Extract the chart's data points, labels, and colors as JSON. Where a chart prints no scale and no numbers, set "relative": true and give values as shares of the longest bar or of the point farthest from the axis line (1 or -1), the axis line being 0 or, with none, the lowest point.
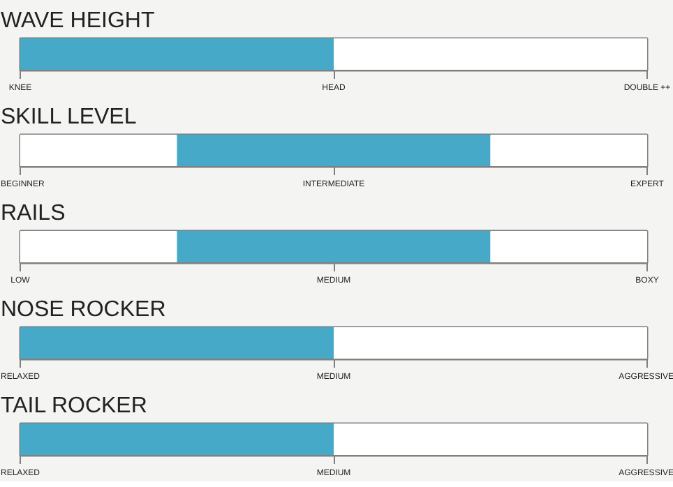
{
  "chart_data": [
    {
      "type": "bar",
      "orientation": "horizontal",
      "stacked": true,
      "relative": true,
      "title": "WAVE HEIGHT",
      "categories": [
        null
      ],
      "series": [
        {
          "color": "#ffffff",
          "values": [
            0
          ]
        },
        {
          "color": "#45a9c7",
          "values": [
            0.5
          ]
        },
        {
          "color": "#ffffff",
          "values": [
            0.5
          ]
        }
      ],
      "annotations": [
        "KNEE",
        "HEAD",
        "DOUBLE ++"
      ]
    },
    {
      "type": "bar",
      "orientation": "horizontal",
      "stacked": true,
      "relative": true,
      "title": "SKILL LEVEL",
      "categories": [
        null
      ],
      "series": [
        {
          "color": "#ffffff",
          "values": [
            0.25
          ]
        },
        {
          "color": "#45a9c7",
          "values": [
            0.5
          ]
        },
        {
          "color": "#ffffff",
          "values": [
            0.25
          ]
        }
      ],
      "annotations": [
        "BEGINNER",
        "INTERMEDIATE",
        "EXPERT"
      ]
    },
    {
      "type": "bar",
      "orientation": "horizontal",
      "stacked": true,
      "relative": true,
      "title": "RAILS",
      "categories": [
        null
      ],
      "series": [
        {
          "color": "#ffffff",
          "values": [
            0.25
          ]
        },
        {
          "color": "#45a9c7",
          "values": [
            0.5
          ]
        },
        {
          "color": "#ffffff",
          "values": [
            0.25
          ]
        }
      ],
      "annotations": [
        "LOW",
        "MEDIUM",
        "BOXY"
      ]
    },
    {
      "type": "bar",
      "orientation": "horizontal",
      "stacked": true,
      "relative": true,
      "title": "NOSE ROCKER",
      "categories": [
        null
      ],
      "series": [
        {
          "color": "#ffffff",
          "values": [
            0
          ]
        },
        {
          "color": "#45a9c7",
          "values": [
            0.5
          ]
        },
        {
          "color": "#ffffff",
          "values": [
            0.5
          ]
        }
      ],
      "annotations": [
        "RELAXED",
        "MEDIUM",
        "AGGRESSIVE"
      ]
    },
    {
      "type": "bar",
      "orientation": "horizontal",
      "stacked": true,
      "relative": true,
      "title": "TAIL ROCKER",
      "categories": [
        null
      ],
      "series": [
        {
          "color": "#ffffff",
          "values": [
            0
          ]
        },
        {
          "color": "#45a9c7",
          "values": [
            0.5
          ]
        },
        {
          "color": "#ffffff",
          "values": [
            0.5
          ]
        }
      ],
      "annotations": [
        "RELAXED",
        "MEDIUM",
        "AGGRESSIVE"
      ]
    }
  ]
}
